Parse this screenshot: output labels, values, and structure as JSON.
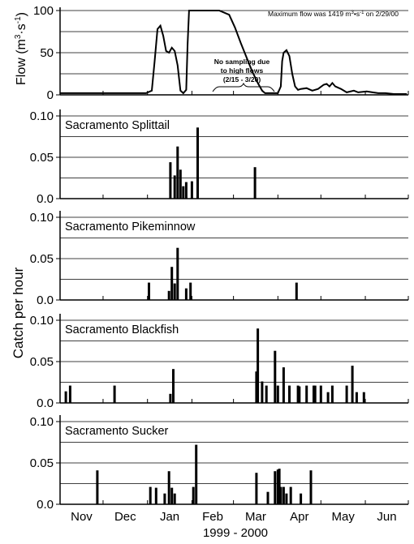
{
  "figure": {
    "xlabel": "1999 - 2000",
    "catch_ylabel": "Catch per hour",
    "months": [
      "Nov",
      "Dec",
      "Jan",
      "Feb",
      "Mar",
      "Apr",
      "May",
      "Jun"
    ]
  },
  "chart_data": [
    {
      "type": "line",
      "title": "",
      "ylabel": "Flow (m³·s⁻¹)",
      "ylabel_main": "Flow (m",
      "ylabel_sup1": "3",
      "ylabel_mid": "·s",
      "ylabel_sup2": "-1",
      "ylabel_end": ")",
      "ylim": [
        0,
        100
      ],
      "yticks": [
        "0",
        "50",
        "100"
      ],
      "x_axis": "days since Nov 1, 1999",
      "annotation_max_prefix": "Maximum flow was 1419 m",
      "annotation_max_sup1": "3",
      "annotation_max_mid": "•s",
      "annotation_max_sup2": "-1",
      "annotation_max_suffix": " on 2/29/00",
      "annotation_gap_line1": "No sampling due",
      "annotation_gap_line2": "to high flows",
      "annotation_gap_line3": "(2/15 - 3/20)",
      "points": [
        [
          0,
          2
        ],
        [
          60,
          2
        ],
        [
          64,
          5
        ],
        [
          66,
          40
        ],
        [
          68,
          78
        ],
        [
          70,
          82
        ],
        [
          72,
          70
        ],
        [
          74,
          52
        ],
        [
          76,
          50
        ],
        [
          78,
          56
        ],
        [
          80,
          52
        ],
        [
          82,
          35
        ],
        [
          84,
          5
        ],
        [
          86,
          2
        ],
        [
          88,
          6
        ],
        [
          89,
          60
        ],
        [
          90,
          100
        ],
        [
          111,
          100
        ],
        [
          118,
          95
        ],
        [
          122,
          80
        ],
        [
          126,
          62
        ],
        [
          130,
          45
        ],
        [
          134,
          28
        ],
        [
          138,
          14
        ],
        [
          141,
          5
        ],
        [
          143,
          2
        ],
        [
          152,
          2
        ],
        [
          154,
          10
        ],
        [
          155,
          40
        ],
        [
          156,
          50
        ],
        [
          158,
          53
        ],
        [
          160,
          46
        ],
        [
          162,
          25
        ],
        [
          164,
          10
        ],
        [
          166,
          6
        ],
        [
          168,
          7
        ],
        [
          172,
          8
        ],
        [
          176,
          5
        ],
        [
          180,
          7
        ],
        [
          184,
          12
        ],
        [
          186,
          13
        ],
        [
          188,
          10
        ],
        [
          190,
          14
        ],
        [
          192,
          10
        ],
        [
          196,
          7
        ],
        [
          200,
          3
        ],
        [
          205,
          5
        ],
        [
          208,
          3
        ],
        [
          214,
          4
        ],
        [
          218,
          3
        ],
        [
          222,
          2
        ],
        [
          227,
          2
        ],
        [
          233,
          1
        ],
        [
          242,
          1
        ]
      ]
    },
    {
      "type": "bar",
      "title": "Sacramento Splittail",
      "ylim": [
        0,
        0.1
      ],
      "yticks": [
        "0.0",
        "0.05",
        "0.10"
      ],
      "x_axis": "days since Nov 1, 1999",
      "points": [
        [
          77,
          0.044
        ],
        [
          80,
          0.028
        ],
        [
          82,
          0.063
        ],
        [
          84,
          0.035
        ],
        [
          86,
          0.015
        ],
        [
          88,
          0.02
        ],
        [
          92,
          0.021
        ],
        [
          96,
          0.086
        ],
        [
          136,
          0.038
        ]
      ]
    },
    {
      "type": "bar",
      "title": "Sacramento Pikeminnow",
      "ylim": [
        0,
        0.1
      ],
      "yticks": [
        "0.0",
        "0.05",
        "0.10"
      ],
      "x_axis": "days since Nov 1, 1999",
      "points": [
        [
          62,
          0.021
        ],
        [
          76,
          0.011
        ],
        [
          78,
          0.04
        ],
        [
          80,
          0.02
        ],
        [
          82,
          0.063
        ],
        [
          88,
          0.014
        ],
        [
          91,
          0.021
        ],
        [
          165,
          0.021
        ]
      ]
    },
    {
      "type": "bar",
      "title": "Sacramento Blackfish",
      "ylim": [
        0,
        0.1
      ],
      "yticks": [
        "0.0",
        "0.05",
        "0.10"
      ],
      "x_axis": "days since Nov 1, 1999",
      "points": [
        [
          4,
          0.014
        ],
        [
          7,
          0.021
        ],
        [
          38,
          0.021
        ],
        [
          77,
          0.011
        ],
        [
          79,
          0.041
        ],
        [
          137,
          0.038
        ],
        [
          138,
          0.09
        ],
        [
          141,
          0.026
        ],
        [
          144,
          0.021
        ],
        [
          150,
          0.063
        ],
        [
          152,
          0.021
        ],
        [
          156,
          0.043
        ],
        [
          160,
          0.021
        ],
        [
          166,
          0.021
        ],
        [
          167,
          0.02
        ],
        [
          172,
          0.021
        ],
        [
          177,
          0.021
        ],
        [
          178,
          0.021
        ],
        [
          182,
          0.021
        ],
        [
          187,
          0.013
        ],
        [
          190,
          0.021
        ],
        [
          200,
          0.021
        ],
        [
          204,
          0.045
        ],
        [
          207,
          0.013
        ],
        [
          212,
          0.013
        ]
      ]
    },
    {
      "type": "bar",
      "title": "Sacramento Sucker",
      "ylim": [
        0,
        0.1
      ],
      "yticks": [
        "0.0",
        "0.05",
        "0.10"
      ],
      "x_axis": "days since Nov 1, 1999",
      "points": [
        [
          26,
          0.041
        ],
        [
          63,
          0.021
        ],
        [
          67,
          0.02
        ],
        [
          73,
          0.013
        ],
        [
          76,
          0.04
        ],
        [
          78,
          0.02
        ],
        [
          80,
          0.013
        ],
        [
          93,
          0.021
        ],
        [
          95,
          0.072
        ],
        [
          137,
          0.038
        ],
        [
          145,
          0.015
        ],
        [
          150,
          0.04
        ],
        [
          152,
          0.042
        ],
        [
          153,
          0.043
        ],
        [
          154,
          0.021
        ],
        [
          156,
          0.021
        ],
        [
          158,
          0.013
        ],
        [
          161,
          0.021
        ],
        [
          168,
          0.013
        ],
        [
          175,
          0.041
        ]
      ]
    }
  ]
}
